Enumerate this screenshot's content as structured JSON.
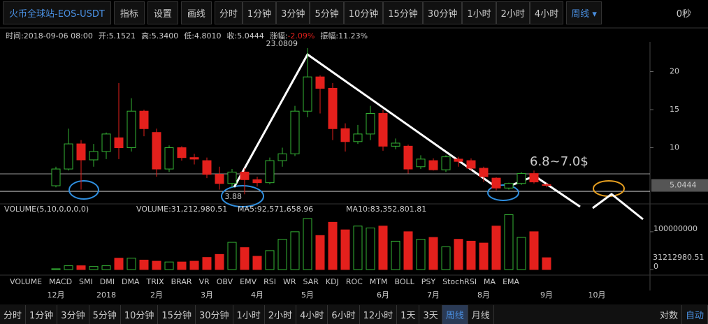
{
  "toolbar": {
    "symbol": "火币全球站-EOS-USDT",
    "buttons": [
      "指标",
      "设置",
      "画线"
    ],
    "timeframes": [
      "分时",
      "1分钟",
      "3分钟",
      "5分钟",
      "10分钟",
      "15分钟",
      "30分钟",
      "1小时",
      "2小时",
      "4小时"
    ],
    "active": "周线",
    "timer": "0秒"
  },
  "info": [
    {
      "label": "时间:",
      "value": "2018-09-06 08:00"
    },
    {
      "label": "开:",
      "value": "5.1521"
    },
    {
      "label": "高:",
      "value": "5.3400"
    },
    {
      "label": "低:",
      "value": "4.8010"
    },
    {
      "label": "收:",
      "value": "5.0444"
    },
    {
      "label": "涨幅:",
      "value": "-2.09%"
    },
    {
      "label": "振幅:",
      "value": "11.23%"
    }
  ],
  "chart_data": {
    "type": "candlestick",
    "categories": [
      "12月",
      null,
      null,
      null,
      "2018",
      null,
      null,
      null,
      "2月",
      null,
      null,
      null,
      "3月",
      null,
      null,
      null,
      "4月",
      null,
      null,
      null,
      "5月",
      null,
      null,
      null,
      null,
      null,
      "6月",
      null,
      null,
      null,
      "7月",
      null,
      null,
      null,
      "8月",
      null,
      null,
      null,
      null,
      "9月",
      null,
      null,
      null,
      "10月"
    ],
    "open": [
      5,
      7.2,
      10.5,
      8.4,
      9.5,
      11.3,
      10,
      14.8,
      12,
      7.2,
      10,
      8.7,
      8.3,
      6.5,
      5.3,
      6.8,
      5.8,
      5.4,
      8.3,
      9.2,
      14.8,
      19.3,
      17.8,
      12.5,
      10.8,
      11.8,
      14.5,
      10.2,
      10.2,
      7.5,
      8.3,
      7.1,
      8.5,
      8.3,
      7.3,
      6.0,
      4.7,
      5.3,
      6.6,
      5.1521,
      null,
      null,
      null,
      null
    ],
    "high": [
      7.5,
      12.5,
      11,
      10.5,
      12,
      18.5,
      16.5,
      15,
      12.5,
      10.3,
      10.2,
      9.2,
      8.7,
      7.5,
      7.2,
      7.3,
      6.2,
      8.7,
      10,
      15.5,
      23.0809,
      19.5,
      18.5,
      13.2,
      13,
      15.5,
      15,
      11.2,
      10.4,
      9,
      8.6,
      9,
      8.8,
      8.6,
      7.5,
      6.1,
      5.4,
      6.8,
      7,
      5.34,
      null,
      null,
      null,
      null
    ],
    "low": [
      4.8,
      7,
      4.5,
      7.5,
      8.5,
      8.5,
      9.5,
      11.5,
      6.2,
      6.8,
      8.3,
      7.8,
      6,
      4.5,
      4.8,
      3.88,
      4.9,
      5.2,
      7.5,
      8.9,
      14,
      14.5,
      11,
      9.5,
      10.5,
      11,
      9.6,
      9.8,
      6.6,
      7.2,
      7,
      6.8,
      7.5,
      7,
      5.5,
      4.4,
      4.5,
      5.1,
      5.3,
      4.801,
      null,
      null,
      null,
      null
    ],
    "close": [
      7.2,
      10.5,
      8.4,
      9.5,
      11.8,
      10,
      14.8,
      12.5,
      7.2,
      10,
      8.7,
      8.5,
      6.5,
      5.3,
      6.8,
      5.8,
      5.4,
      8.3,
      9.2,
      14.8,
      19.3,
      17.8,
      12.5,
      10.8,
      11.8,
      14.5,
      10.2,
      10.6,
      7.2,
      8.5,
      7.1,
      8.8,
      8.2,
      7.3,
      6.2,
      4.7,
      5.3,
      6.6,
      5.5,
      5.0444,
      null,
      null,
      null,
      null
    ],
    "volume": [
      2000000,
      10000000,
      10000000,
      8000000,
      10000000,
      30000000,
      30000000,
      25000000,
      22000000,
      20000000,
      20000000,
      22000000,
      32000000,
      40000000,
      72000000,
      58000000,
      35000000,
      50000000,
      80000000,
      100000000,
      135000000,
      90000000,
      125000000,
      105000000,
      115000000,
      110000000,
      115000000,
      75000000,
      100000000,
      80000000,
      85000000,
      60000000,
      80000000,
      75000000,
      70000000,
      115000000,
      145000000,
      85000000,
      100000000,
      31212980.51,
      null,
      null,
      null,
      null
    ],
    "ylim": [
      2.8,
      23.9
    ],
    "yticks": [
      10,
      15,
      20
    ],
    "volume_ylim": [
      0,
      170000000
    ],
    "volume_yticks": [
      0,
      100000000
    ],
    "up_color": "#35b335",
    "down_color": "#e4201c",
    "high_label": "23.0809",
    "low_label": "3.88",
    "annotation": "6.8~7.0$",
    "volume_title": "VOLUME(5,10,0,0,0,0)",
    "volume_stats": [
      "VOLUME:31,212,980.51",
      "MA5:92,571,658.96",
      "MA10:83,352,801.81"
    ]
  },
  "indicators": [
    "VOLUME",
    "MACD",
    "SMI",
    "DMI",
    "DMA",
    "TRIX",
    "BRAR",
    "VR",
    "OBV",
    "EMV",
    "RSI",
    "WR",
    "SAR",
    "KDJ",
    "ROC",
    "MTM",
    "BOLL",
    "PSY",
    "StochRSI",
    "MA",
    "EMA"
  ],
  "bottom_bar": {
    "timeframes": [
      "分时",
      "1分钟",
      "3分钟",
      "5分钟",
      "10分钟",
      "15分钟",
      "30分钟",
      "1小时",
      "2小时",
      "4小时",
      "6小时",
      "12小时",
      "1天",
      "3天",
      "周线",
      "月线"
    ],
    "options": [
      "对数",
      "自动"
    ]
  }
}
